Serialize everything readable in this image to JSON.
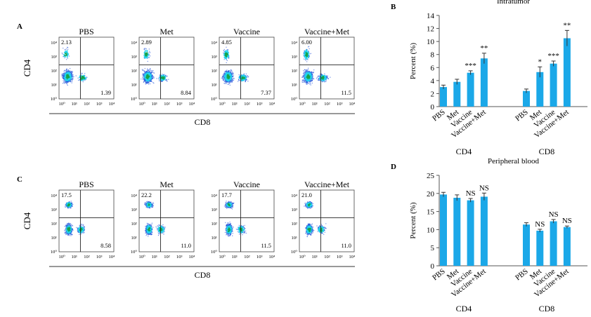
{
  "panel_a": {
    "letter": "A",
    "y_axis_label": "CD4",
    "x_axis_label": "CD8",
    "tick_labels": [
      "10⁰",
      "10¹",
      "10²",
      "10³",
      "10⁴"
    ],
    "plots": [
      {
        "title": "PBS",
        "q_upper_left": "2.13",
        "q_lower_right": "1.39"
      },
      {
        "title": "Met",
        "q_upper_left": "2.89",
        "q_lower_right": "8.84"
      },
      {
        "title": "Vaccine",
        "q_upper_left": "4.85",
        "q_lower_right": "7.37"
      },
      {
        "title": "Vaccine+Met",
        "q_upper_left": "6.00",
        "q_lower_right": "11.5"
      }
    ]
  },
  "panel_c": {
    "letter": "C",
    "y_axis_label": "CD4",
    "x_axis_label": "CD8",
    "tick_labels": [
      "10⁰",
      "10¹",
      "10²",
      "10³",
      "10⁴"
    ],
    "plots": [
      {
        "title": "PBS",
        "q_upper_left": "17.5",
        "q_lower_right": "8.58"
      },
      {
        "title": "Met",
        "q_upper_left": "22.2",
        "q_lower_right": "11.0"
      },
      {
        "title": "Vaccine",
        "q_upper_left": "17.7",
        "q_lower_right": "11.5"
      },
      {
        "title": "Vaccine+Met",
        "q_upper_left": "21.0",
        "q_lower_right": "11.0"
      }
    ]
  },
  "colors": {
    "bar": "#1ba8e8",
    "grid": "#555555",
    "density_core": "#16a34a",
    "density_mid": "#22d3ee",
    "density_low": "#1d4ed8"
  },
  "chart_data": [
    {
      "type": "bar",
      "letter": "B",
      "title": "Intratumor",
      "ylabel": "Percent (%)",
      "ylim": [
        0,
        14
      ],
      "yticks": [
        0,
        2,
        4,
        6,
        8,
        10,
        12,
        14
      ],
      "groups": [
        {
          "name": "CD4",
          "categories": [
            "PBS",
            "Met",
            "Vaccine",
            "Vaccine+Met"
          ],
          "values": [
            3.0,
            3.8,
            5.2,
            7.4
          ],
          "errors": [
            0.3,
            0.4,
            0.3,
            0.8
          ],
          "annotations": [
            "",
            "",
            "***",
            "**"
          ]
        },
        {
          "name": "CD8",
          "categories": [
            "PBS",
            "Met",
            "Vaccine",
            "Vaccine+Met"
          ],
          "values": [
            2.4,
            5.3,
            6.6,
            10.5
          ],
          "errors": [
            0.3,
            0.8,
            0.4,
            1.2
          ],
          "annotations": [
            "",
            "*",
            "***",
            "**"
          ]
        }
      ]
    },
    {
      "type": "bar",
      "letter": "D",
      "title": "Peripheral blood",
      "ylabel": "Percent (%)",
      "ylim": [
        0,
        25
      ],
      "yticks": [
        0,
        5,
        10,
        15,
        20,
        25
      ],
      "groups": [
        {
          "name": "CD4",
          "categories": [
            "PBS",
            "Met",
            "Vaccine",
            "Vaccine+Met"
          ],
          "values": [
            19.7,
            18.8,
            18.1,
            19.1
          ],
          "errors": [
            0.6,
            0.8,
            0.5,
            1.0
          ],
          "annotations": [
            "",
            "",
            "NS",
            "NS"
          ]
        },
        {
          "name": "CD8",
          "categories": [
            "PBS",
            "Met",
            "Vaccine",
            "Vaccine+Met"
          ],
          "values": [
            11.4,
            9.7,
            12.3,
            10.7
          ],
          "errors": [
            0.5,
            0.4,
            0.5,
            0.3
          ],
          "annotations": [
            "",
            "NS",
            "NS",
            "NS"
          ]
        }
      ]
    }
  ]
}
